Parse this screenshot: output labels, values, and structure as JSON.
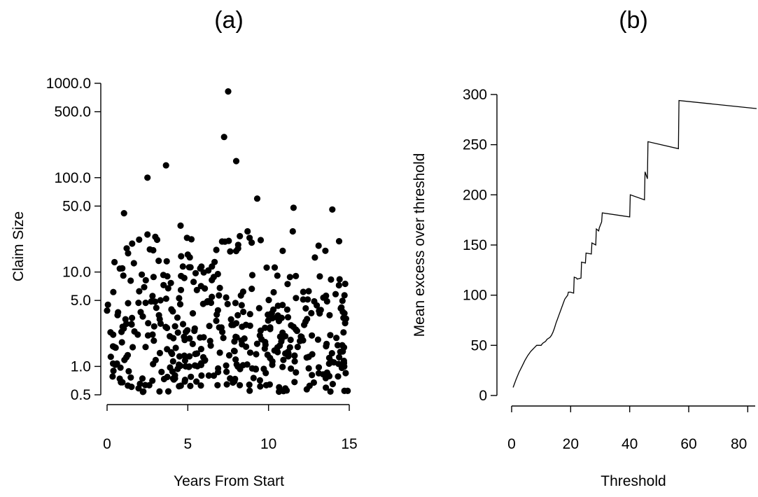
{
  "chart_data": [
    {
      "panel": "(a)",
      "type": "scatter",
      "xlabel": "Years From Start",
      "ylabel": "Claim Size",
      "xlim": [
        0,
        15
      ],
      "ylim": [
        0.5,
        1000
      ],
      "yscale": "log",
      "xticks": [
        0,
        5,
        10,
        15
      ],
      "xtick_labels": [
        "0",
        "5",
        "10",
        "15"
      ],
      "yticks": [
        0.5,
        1,
        5,
        10,
        50,
        100,
        500,
        1000
      ],
      "ytick_labels": [
        "0.5",
        "1.0",
        "5.0",
        "10.0",
        "50.0",
        "100.0",
        "500.0",
        "1000.0"
      ],
      "grid": false,
      "marker_color": "#000000",
      "notable_points": [
        {
          "x": 0.0,
          "y": 3.9
        },
        {
          "x": 0.05,
          "y": 4.5
        },
        {
          "x": 1.05,
          "y": 42
        },
        {
          "x": 2.5,
          "y": 100
        },
        {
          "x": 2.5,
          "y": 25
        },
        {
          "x": 3.1,
          "y": 22
        },
        {
          "x": 3.65,
          "y": 135
        },
        {
          "x": 4.55,
          "y": 31
        },
        {
          "x": 7.25,
          "y": 270
        },
        {
          "x": 7.5,
          "y": 820
        },
        {
          "x": 8.0,
          "y": 150
        },
        {
          "x": 9.3,
          "y": 60
        },
        {
          "x": 8.7,
          "y": 27
        },
        {
          "x": 7.3,
          "y": 21
        },
        {
          "x": 11.55,
          "y": 48
        },
        {
          "x": 11.5,
          "y": 27
        },
        {
          "x": 13.95,
          "y": 46
        },
        {
          "x": 13.1,
          "y": 19
        },
        {
          "x": 14.75,
          "y": 7.5
        },
        {
          "x": 14.8,
          "y": 3.2
        },
        {
          "x": 14.7,
          "y": 0.55
        },
        {
          "x": 14.9,
          "y": 0.55
        }
      ]
    },
    {
      "panel": "(b)",
      "type": "line",
      "xlabel": "Threshold",
      "ylabel": "Mean excess over threshold",
      "xlim": [
        0,
        83
      ],
      "ylim": [
        0,
        300
      ],
      "xticks": [
        0,
        20,
        40,
        60,
        80
      ],
      "xtick_labels": [
        "0",
        "20",
        "40",
        "60",
        "80"
      ],
      "yticks": [
        0,
        50,
        100,
        150,
        200,
        250,
        300
      ],
      "ytick_labels": [
        "0",
        "50",
        "100",
        "150",
        "200",
        "250",
        "300"
      ],
      "grid": false,
      "series": [
        {
          "x": [
            0.5,
            1.5,
            2.5,
            3.5,
            4.5,
            5.5,
            6.5,
            7.5,
            8.5,
            9.0,
            10.0,
            10.5,
            11.5,
            12.0,
            13.0,
            13.5,
            14.0,
            14.5,
            15.0,
            15.5,
            16.0,
            16.5,
            17.0,
            17.5,
            18.0,
            18.5,
            19.0,
            19.2,
            20.0,
            21.0,
            21.2,
            22.0,
            22.2,
            23.5,
            23.7,
            25.0,
            25.2,
            27.0,
            27.2,
            28.5,
            28.7,
            29.5,
            29.7,
            30.5,
            30.7,
            40.0,
            40.2,
            45.0,
            45.2,
            46.0,
            46.2,
            56.5,
            56.7,
            83.0
          ],
          "y": [
            8,
            16,
            23,
            29,
            35,
            40,
            44,
            47,
            50,
            50,
            50,
            52,
            54,
            56,
            58,
            60,
            63,
            67,
            72,
            76,
            80,
            84,
            88,
            92,
            96,
            98,
            100,
            103,
            103,
            102,
            118,
            117,
            116,
            117,
            133,
            132,
            142,
            141,
            152,
            150,
            166,
            164,
            167,
            173,
            182,
            178,
            200,
            195,
            223,
            216,
            253,
            246,
            294,
            286
          ]
        }
      ]
    }
  ]
}
